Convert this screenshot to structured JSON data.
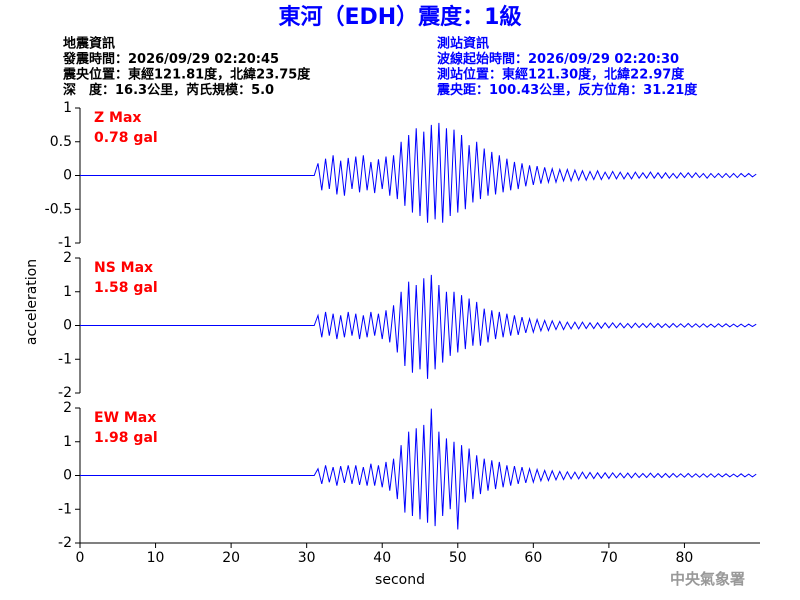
{
  "title": "東河（EDH）震度：1級",
  "quake_info": [
    "地震資訊",
    "發震時間：2026/09/29 02:20:45",
    "震央位置：東經121.81度，北緯23.75度",
    "深　度：16.3公里，芮氏規模：5.0"
  ],
  "station_info": [
    "測站資訊",
    "波線起始時間：2026/09/29 02:20:30",
    "測站位置：東經121.30度，北緯22.97度",
    "震央距：100.43公里，反方位角：31.21度"
  ],
  "footer": "中央氣象署",
  "chart_data": [
    {
      "type": "line",
      "label": "Z Max",
      "max_label": "0.78 gal",
      "xlim": [
        0,
        90
      ],
      "ylim": [
        -1,
        1
      ],
      "yticks": [
        -1,
        -0.5,
        0,
        0.5,
        1
      ],
      "x": [
        0,
        31,
        31.5,
        32,
        32.5,
        33,
        33.5,
        34,
        34.5,
        35,
        35.5,
        36,
        36.5,
        37,
        37.5,
        38,
        38.5,
        39,
        39.5,
        40,
        40.5,
        41,
        41.5,
        42,
        42.5,
        43,
        43.5,
        44,
        44.5,
        45,
        45.5,
        46,
        46.5,
        47,
        47.5,
        48,
        48.5,
        49,
        49.5,
        50,
        50.5,
        51,
        51.5,
        52,
        52.5,
        53,
        53.5,
        54,
        54.5,
        55,
        55.5,
        56,
        56.5,
        57,
        57.5,
        58,
        58.5,
        59,
        59.5,
        60,
        60.5,
        61,
        61.5,
        62,
        62.5,
        63,
        63.5,
        64,
        64.5,
        65,
        65.5,
        66,
        66.5,
        67,
        67.5,
        68,
        68.5,
        69,
        69.5,
        70,
        70.5,
        71,
        71.5,
        72,
        72.5,
        73,
        73.5,
        74,
        74.5,
        75,
        75.5,
        76,
        76.5,
        77,
        77.5,
        78,
        78.5,
        79,
        79.5,
        80,
        80.5,
        81,
        81.5,
        82,
        82.5,
        83,
        83.5,
        84,
        84.5,
        85,
        85.5,
        86,
        86.5,
        87,
        87.5,
        88,
        88.5,
        89,
        89.5
      ],
      "series": [
        {
          "color": "#0000ff",
          "values": [
            0,
            0,
            0.18,
            -0.22,
            0.25,
            -0.2,
            0.3,
            -0.28,
            0.22,
            -0.3,
            0.26,
            -0.2,
            0.28,
            -0.25,
            0.3,
            -0.22,
            0.2,
            -0.26,
            0.24,
            -0.2,
            0.28,
            -0.3,
            0.3,
            -0.35,
            0.5,
            -0.45,
            0.6,
            -0.55,
            0.7,
            -0.6,
            0.65,
            -0.7,
            0.75,
            -0.65,
            0.78,
            -0.7,
            0.7,
            -0.6,
            0.68,
            -0.55,
            0.6,
            -0.5,
            0.45,
            -0.4,
            0.5,
            -0.35,
            0.4,
            -0.3,
            0.35,
            -0.28,
            0.3,
            -0.25,
            0.25,
            -0.22,
            0.2,
            -0.2,
            0.18,
            -0.16,
            0.15,
            -0.14,
            0.14,
            -0.12,
            0.12,
            -0.1,
            0.1,
            -0.1,
            0.09,
            -0.08,
            0.09,
            -0.08,
            0.08,
            -0.07,
            0.07,
            -0.07,
            0.06,
            -0.06,
            0.07,
            -0.06,
            0.05,
            -0.05,
            0.06,
            -0.05,
            0.05,
            -0.05,
            0.04,
            -0.05,
            0.05,
            -0.04,
            0.04,
            -0.04,
            0.05,
            -0.04,
            0.04,
            -0.04,
            0.04,
            -0.04,
            0.03,
            -0.04,
            0.04,
            -0.03,
            0.04,
            -0.03,
            0.04,
            -0.03,
            0.03,
            -0.04,
            0.03,
            -0.03,
            0.03,
            -0.03,
            0.03,
            -0.03,
            0.03,
            -0.03,
            0.03,
            -0.02,
            0.03,
            -0.02,
            0.02
          ]
        }
      ]
    },
    {
      "type": "line",
      "label": "NS Max",
      "max_label": "1.58 gal",
      "ylabel": "acceleration",
      "xlim": [
        0,
        90
      ],
      "ylim": [
        -2,
        2
      ],
      "yticks": [
        -2,
        -1,
        0,
        1,
        2
      ],
      "series": [
        {
          "color": "#0000ff",
          "values": [
            0,
            0,
            0.3,
            -0.35,
            0.4,
            -0.3,
            0.35,
            -0.4,
            0.3,
            -0.35,
            0.4,
            -0.3,
            0.35,
            -0.4,
            0.3,
            -0.35,
            0.4,
            -0.3,
            0.35,
            -0.4,
            0.45,
            -0.5,
            0.6,
            -0.8,
            1.0,
            -1.2,
            1.3,
            -1.4,
            1.2,
            -1.3,
            1.4,
            -1.58,
            1.5,
            -1.3,
            1.2,
            -1.1,
            1.0,
            -0.9,
            1.0,
            -0.8,
            0.9,
            -0.7,
            0.8,
            -0.6,
            0.7,
            -0.6,
            0.5,
            -0.5,
            0.45,
            -0.4,
            0.4,
            -0.35,
            0.35,
            -0.3,
            0.3,
            -0.28,
            0.25,
            -0.22,
            0.2,
            -0.2,
            0.18,
            -0.16,
            0.15,
            -0.15,
            0.14,
            -0.12,
            0.12,
            -0.12,
            0.1,
            -0.1,
            0.1,
            -0.1,
            0.1,
            -0.09,
            0.08,
            -0.09,
            0.08,
            -0.08,
            0.08,
            -0.07,
            0.08,
            -0.07,
            0.07,
            -0.07,
            0.06,
            -0.07,
            0.07,
            -0.06,
            0.06,
            -0.06,
            0.07,
            -0.06,
            0.06,
            -0.06,
            0.05,
            -0.06,
            0.06,
            -0.05,
            0.05,
            -0.05,
            0.06,
            -0.05,
            0.05,
            -0.05,
            0.05,
            -0.05,
            0.04,
            -0.05,
            0.05,
            -0.04,
            0.05,
            -0.04,
            0.04,
            -0.04,
            0.04,
            -0.04,
            0.04,
            -0.03,
            0.04
          ]
        }
      ]
    },
    {
      "type": "line",
      "label": "EW Max",
      "max_label": "1.98 gal",
      "xlabel": "second",
      "xlim": [
        0,
        90
      ],
      "xticks": [
        0,
        10,
        20,
        30,
        40,
        50,
        60,
        70,
        80
      ],
      "ylim": [
        -2,
        2
      ],
      "yticks": [
        -2,
        -1,
        0,
        1,
        2
      ],
      "series": [
        {
          "color": "#0000ff",
          "values": [
            0,
            0,
            0.2,
            -0.25,
            0.3,
            -0.2,
            0.25,
            -0.3,
            0.28,
            -0.22,
            0.3,
            -0.25,
            0.3,
            -0.28,
            0.25,
            -0.3,
            0.35,
            -0.3,
            0.3,
            -0.35,
            0.4,
            -0.45,
            0.5,
            -0.7,
            0.9,
            -1.1,
            1.3,
            -1.2,
            1.4,
            -1.3,
            1.5,
            -1.4,
            1.98,
            -1.5,
            1.3,
            -1.2,
            1.1,
            -1.0,
            1.0,
            -1.6,
            0.9,
            -0.8,
            0.8,
            -0.7,
            0.6,
            -0.55,
            0.5,
            -0.45,
            0.45,
            -0.4,
            0.4,
            -0.35,
            0.3,
            -0.3,
            0.28,
            -0.25,
            0.25,
            -0.22,
            0.2,
            -0.2,
            0.18,
            -0.16,
            0.15,
            -0.15,
            0.14,
            -0.13,
            0.12,
            -0.12,
            0.11,
            -0.1,
            0.1,
            -0.1,
            0.1,
            -0.09,
            0.09,
            -0.09,
            0.08,
            -0.08,
            0.08,
            -0.08,
            0.08,
            -0.07,
            0.07,
            -0.07,
            0.07,
            -0.07,
            0.07,
            -0.06,
            0.06,
            -0.06,
            0.07,
            -0.06,
            0.06,
            -0.06,
            0.06,
            -0.06,
            0.06,
            -0.05,
            0.05,
            -0.05,
            0.06,
            -0.05,
            0.05,
            -0.05,
            0.05,
            -0.05,
            0.05,
            -0.05,
            0.05,
            -0.04,
            0.05,
            -0.04,
            0.04,
            -0.04,
            0.05,
            -0.04,
            0.04,
            -0.04,
            0.04
          ]
        }
      ]
    }
  ]
}
